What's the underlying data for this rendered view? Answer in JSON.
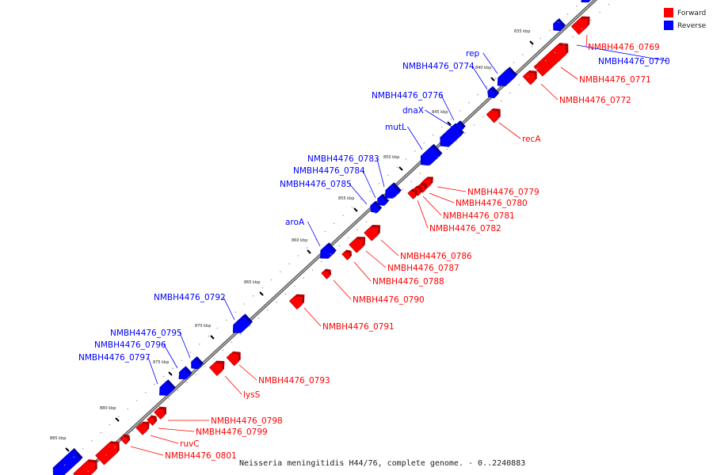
{
  "legend": {
    "forward": {
      "label": "Forward",
      "color": "#ff0000"
    },
    "reverse": {
      "label": "Reverse",
      "color": "#0000ff"
    }
  },
  "caption": "Neisseria meningitidis H44/76, complete genome. - 0..2240883",
  "ticks": [
    "835 kbp",
    "840 kbp",
    "845 kbp",
    "850 kbp",
    "855 kbp",
    "860 kbp",
    "865 kbp",
    "870 kbp",
    "875 kbp",
    "880 kbp",
    "885 kbp"
  ],
  "genes": {
    "forward": [
      "NMBH4476_0769",
      "NMBH4476_0771",
      "NMBH4476_0772",
      "recA",
      "NMBH4476_0779",
      "NMBH4476_0780",
      "NMBH4476_0781",
      "NMBH4476_0782",
      "NMBH4476_0786",
      "NMBH4476_0787",
      "NMBH4476_0788",
      "NMBH4476_0790",
      "NMBH4476_0791",
      "NMBH4476_0793",
      "lysS",
      "NMBH4476_0798",
      "NMBH4476_0799",
      "ruvC",
      "NMBH4476_0801"
    ],
    "reverse": [
      "NMBH4476_0770",
      "rep",
      "NMBH4476_0774",
      "NMBH4476_0776",
      "dnaX",
      "mutL",
      "NMBH4476_0783",
      "NMBH4476_0784",
      "NMBH4476_0785",
      "aroA",
      "NMBH4476_0792",
      "NMBH4476_0795",
      "NMBH4476_0796",
      "NMBH4476_0797"
    ]
  }
}
